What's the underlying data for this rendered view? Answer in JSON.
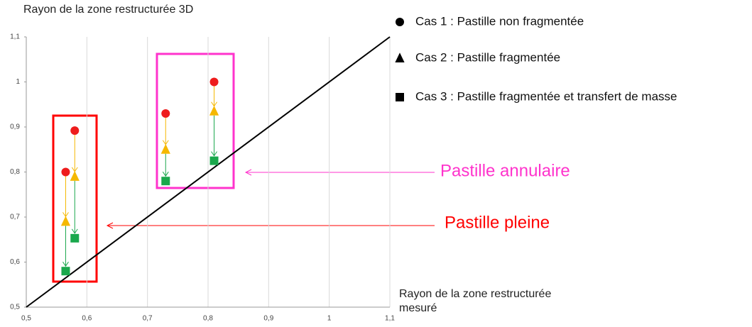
{
  "chart_data": {
    "type": "scatter",
    "y_label": "Rayon de la zone restructurée 3D",
    "x_label": "Rayon de la zone restructurée mesuré",
    "xlim": [
      0.5,
      1.1
    ],
    "xticks": [
      {
        "value": 0.5,
        "label": "0,5"
      },
      {
        "value": 0.6,
        "label": "0,6"
      },
      {
        "value": 0.7,
        "label": "0,7"
      },
      {
        "value": 0.8,
        "label": "0,8"
      },
      {
        "value": 0.9,
        "label": "0,9"
      },
      1,
      {
        "value": 1.1,
        "label": "1,1"
      }
    ],
    "ylim": [
      0.5,
      1.1
    ],
    "yticks": [
      {
        "value": 0.5,
        "label": "0,5"
      },
      {
        "value": 0.6,
        "label": "0,6"
      },
      {
        "value": 0.7,
        "label": "0,7"
      },
      {
        "value": 0.8,
        "label": "0,8"
      },
      {
        "value": 0.9,
        "label": "0,9"
      },
      1,
      {
        "value": 1.1,
        "label": "1,1"
      }
    ],
    "grid": true,
    "x": [
      0.565,
      0.58,
      0.73,
      0.81
    ],
    "series": [
      {
        "name": "Cas 1 : Pastille non fragmentée",
        "marker": "circle",
        "color": "#ee1c1c",
        "values": [
          0.8,
          0.892,
          0.93,
          1.0
        ]
      },
      {
        "name": "Cas 2 : Pastille fragmentée",
        "marker": "triangle",
        "color": "#f5b800",
        "values": [
          0.69,
          0.79,
          0.85,
          0.935
        ]
      },
      {
        "name": "Cas 3 : Pastille fragmentée et transfert de masse",
        "marker": "square",
        "color": "#1aa84c",
        "values": [
          0.58,
          0.653,
          0.78,
          0.825
        ]
      }
    ],
    "annotations": [
      {
        "text": "Pastille annulaire",
        "color": "#ff33cc"
      },
      {
        "text": "Pastille pleine",
        "color": "#ff0000"
      }
    ]
  }
}
